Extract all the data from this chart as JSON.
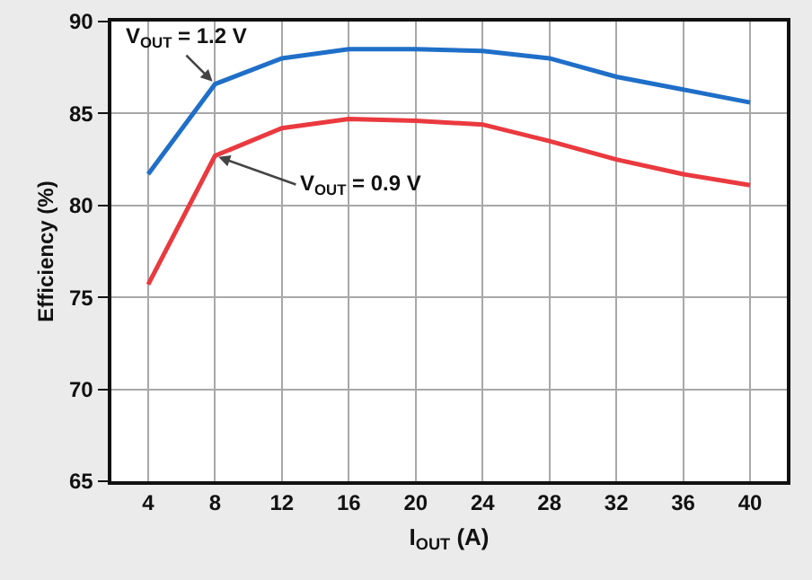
{
  "chart_data": {
    "type": "line",
    "xlabel": "I$_{OUT}$ (A)",
    "ylabel": "Efficiency (%)",
    "x": [
      4,
      8,
      12,
      16,
      20,
      24,
      28,
      32,
      36,
      40
    ],
    "series": [
      {
        "color": "#1f6fc8",
        "values": [
          81.7,
          86.6,
          88.0,
          88.5,
          88.5,
          88.4,
          88.0,
          87.0,
          86.3,
          85.6
        ]
      },
      {
        "color": "#ea3a3f",
        "values": [
          75.7,
          82.7,
          84.2,
          84.7,
          84.6,
          84.4,
          83.5,
          82.5,
          81.7,
          81.1
        ]
      }
    ],
    "annotations": [
      {
        "text": "V$_{OUT}$ = 1.2 V",
        "x": 8,
        "y": 86.6
      },
      {
        "text": "V$_{OUT}$ = 0.9 V",
        "x": 8,
        "y": 82.7
      }
    ],
    "xlim": [
      1.8,
      42.2
    ],
    "xticks": [
      4,
      8,
      12,
      16,
      20,
      24,
      28,
      32,
      36,
      40
    ],
    "ylim": [
      65,
      90
    ],
    "yticks": [
      65,
      70,
      75,
      80,
      85,
      90
    ],
    "grid": true,
    "marker": "none",
    "line_style": "solid"
  }
}
